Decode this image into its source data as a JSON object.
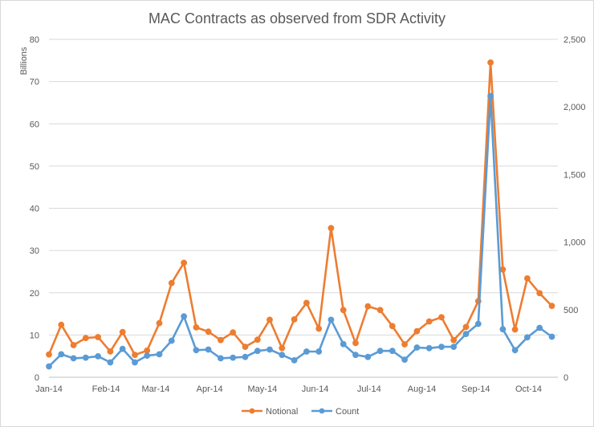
{
  "chart_data": {
    "type": "line",
    "title": "MAC Contracts as observed from SDR Activity",
    "ylabel": "Billions",
    "y2label": "",
    "ylim": [
      0,
      80
    ],
    "y2lim": [
      0,
      2500
    ],
    "yticks": [
      "0",
      "10",
      "20",
      "30",
      "40",
      "50",
      "60",
      "70",
      "80"
    ],
    "y2ticks": [
      "0",
      "500",
      "1,000",
      "1,500",
      "2,000",
      "2,500"
    ],
    "xtick_labels": [
      "Jan-14",
      "Feb-14",
      "Mar-14",
      "Apr-14",
      "May-14",
      "Jun-14",
      "Jul-14",
      "Aug-14",
      "Sep-14",
      "Oct-14"
    ],
    "grid": "horizontal",
    "legend_position": "bottom",
    "colors": {
      "Notional": "#ed7d31",
      "Count": "#5b9bd5"
    },
    "series": [
      {
        "name": "Notional",
        "axis": "left",
        "values": [
          5.4,
          12.4,
          7.6,
          9.3,
          9.5,
          6.1,
          10.7,
          5.3,
          6.3,
          12.8,
          22.3,
          27.1,
          11.8,
          10.8,
          8.8,
          10.6,
          7.2,
          8.9,
          13.6,
          6.9,
          13.7,
          17.6,
          11.5,
          35.3,
          15.9,
          8.1,
          16.8,
          15.9,
          12.1,
          7.8,
          10.9,
          13.2,
          14.2,
          8.8,
          11.9,
          18.0,
          74.5,
          25.5,
          11.3,
          23.4,
          19.9,
          16.9
        ]
      },
      {
        "name": "Count",
        "axis": "right",
        "values": [
          80,
          170,
          140,
          145,
          155,
          110,
          210,
          110,
          160,
          170,
          270,
          450,
          200,
          205,
          140,
          145,
          150,
          195,
          205,
          165,
          125,
          190,
          190,
          425,
          245,
          165,
          150,
          195,
          195,
          130,
          220,
          215,
          225,
          225,
          320,
          395,
          2080,
          355,
          200,
          295,
          365,
          300
        ]
      }
    ]
  }
}
